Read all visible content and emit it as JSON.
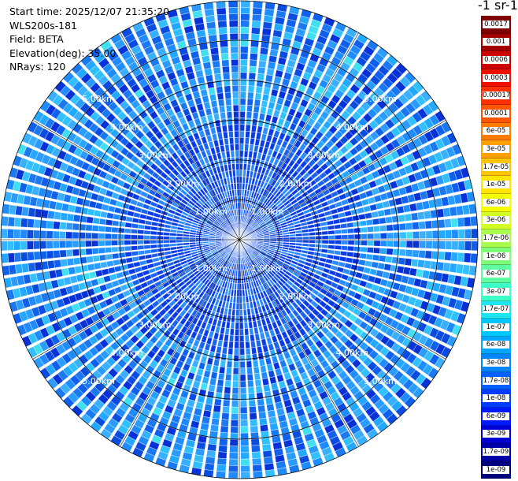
{
  "header": {
    "start_time": "Start time: 2025/12/07 21:35:20",
    "instrument": "WLS200s-181",
    "field": "Field: BETA",
    "elevation": "Elevation(deg): 35.00",
    "nrays": "NRays: 120"
  },
  "colorbar": {
    "title": "-1 sr-1",
    "labels": [
      "0.0017",
      "0.001",
      "0.0006",
      "0.0003",
      "0.00017",
      "0.0001",
      "6e-05",
      "3e-05",
      "1.7e-05",
      "1e-05",
      "6e-06",
      "3e-06",
      "1.7e-06",
      "1e-06",
      "6e-07",
      "3e-07",
      "1.7e-07",
      "1e-07",
      "6e-08",
      "3e-08",
      "1.7e-08",
      "1e-08",
      "6e-09",
      "3e-09",
      "1.7e-09",
      "1e-09"
    ],
    "colors": [
      "#7f0000",
      "#a50000",
      "#cc0000",
      "#ee1100",
      "#ff3000",
      "#ff5500",
      "#ff7a00",
      "#ff9f00",
      "#ffc400",
      "#ffe500",
      "#f6ff00",
      "#d2ff24",
      "#a8ff4e",
      "#7eff78",
      "#5dffa0",
      "#3dffc8",
      "#1ee6f0",
      "#00c8ff",
      "#00a6ff",
      "#0084ff",
      "#0060ff",
      "#003cff",
      "#0018ff",
      "#0000d6",
      "#0000a8",
      "#00007f"
    ]
  },
  "ppi": {
    "range_labels": [
      "1.00km",
      "2.00km",
      "3.00km",
      "4.00km",
      "5.00km"
    ],
    "nrays": 120,
    "max_range_km": 5.0
  }
}
